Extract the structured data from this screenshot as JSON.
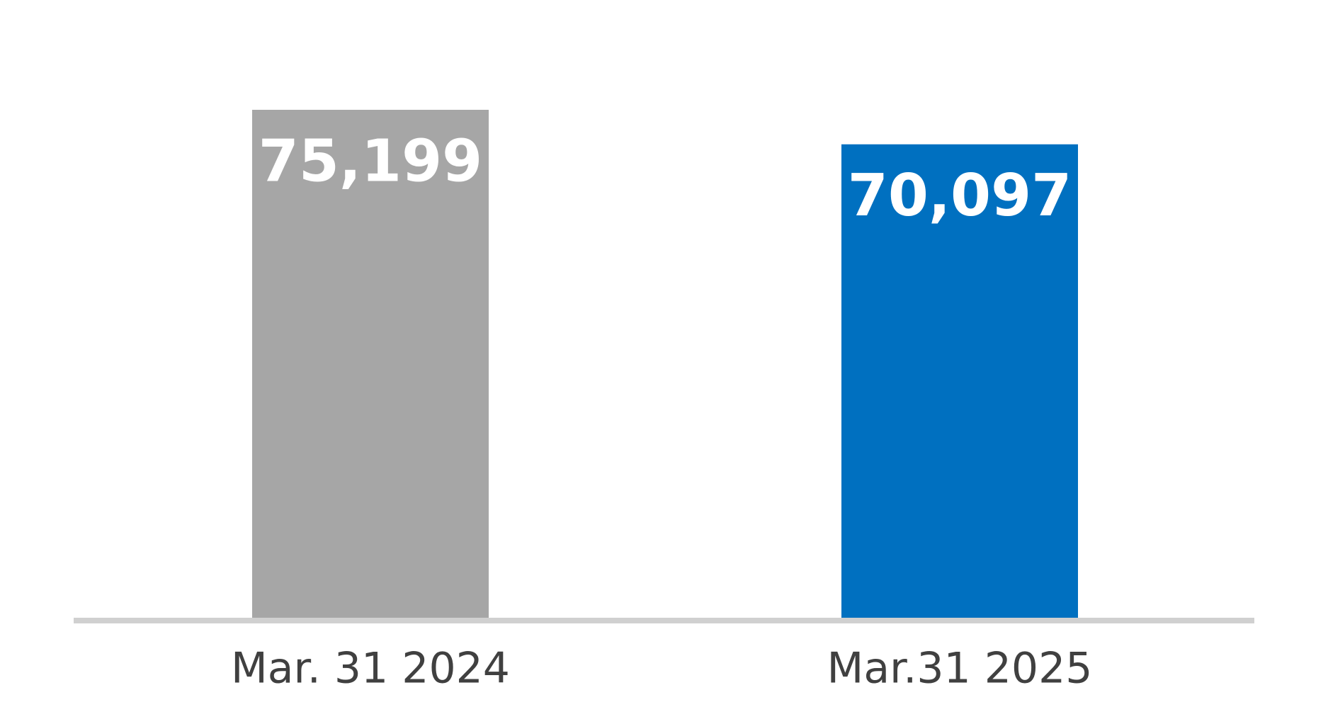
{
  "chart_data": {
    "type": "bar",
    "categories": [
      "Mar. 31 2024",
      "Mar.31 2025"
    ],
    "values": [
      75199,
      70097
    ],
    "value_labels": [
      "75,199",
      "70,097"
    ],
    "colors": [
      "#a6a6a6",
      "#0070c0"
    ]
  }
}
